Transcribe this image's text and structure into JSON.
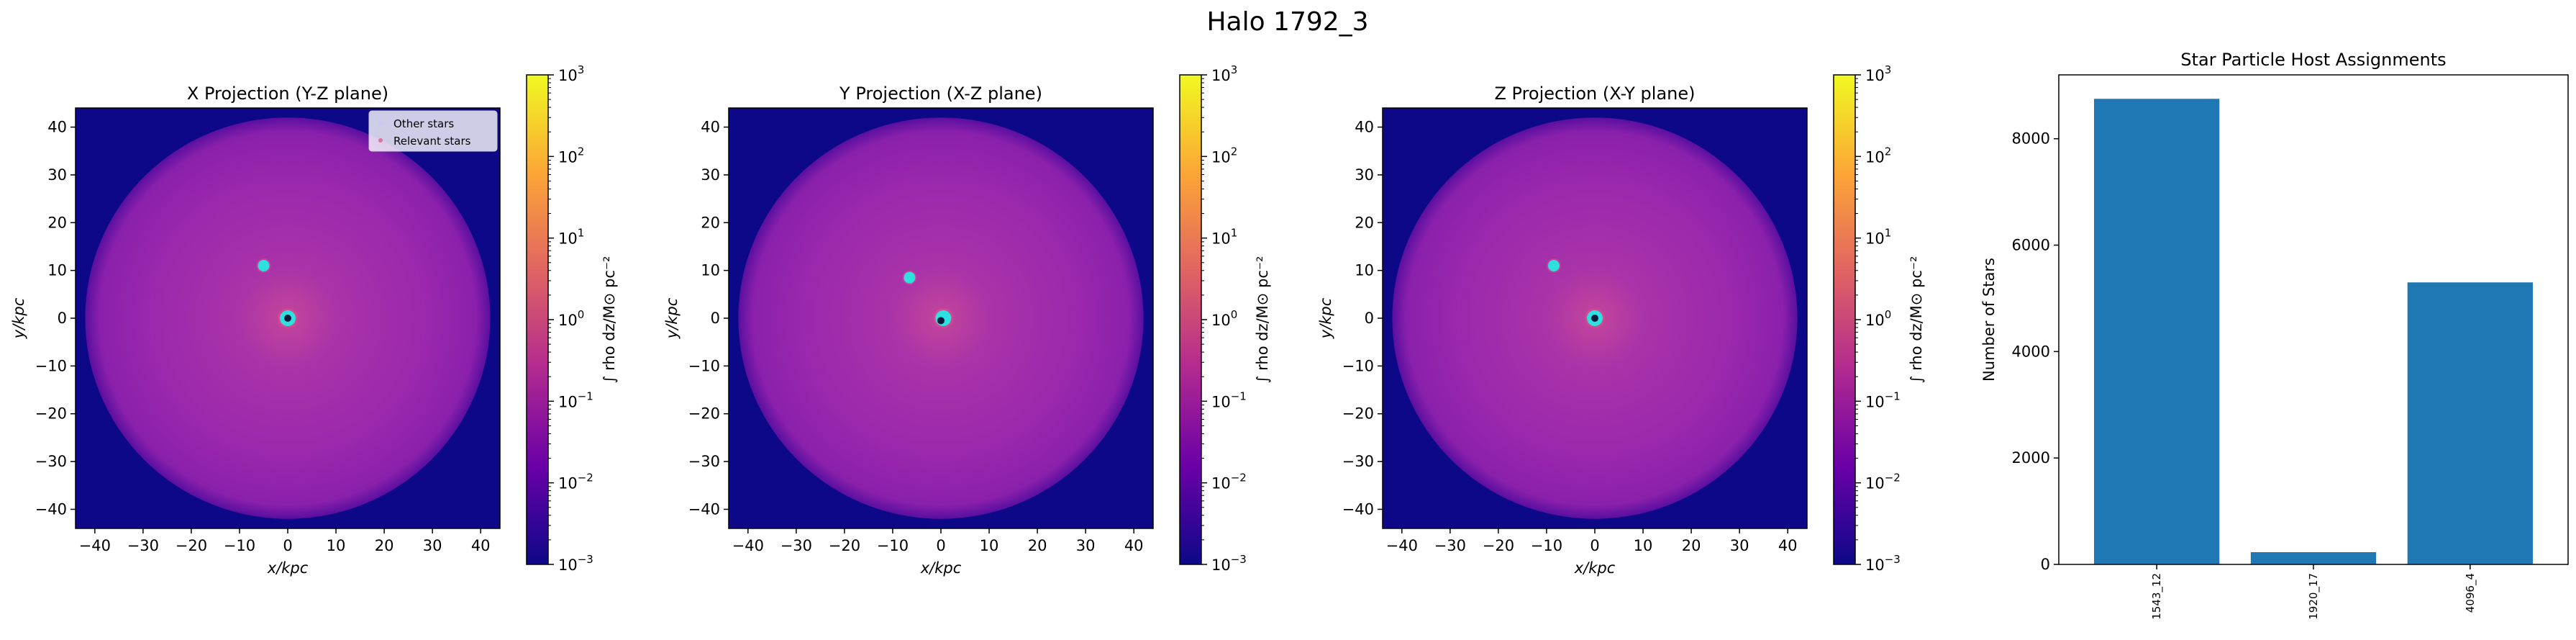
{
  "suptitle": "Halo 1792_3",
  "panels": [
    {
      "title": "X Projection (Y-Z plane)",
      "xlabel": "x/kpc",
      "ylabel": "y/kpc",
      "legend": {
        "items": [
          "Other stars",
          "Relevant stars"
        ],
        "position": "top-right"
      },
      "clumps": [
        {
          "x": -5,
          "y": 11
        },
        {
          "x": 0,
          "y": 0
        }
      ],
      "center_star": {
        "x": 0,
        "y": 0
      }
    },
    {
      "title": "Y Projection (X-Z plane)",
      "xlabel": "x/kpc",
      "ylabel": "y/kpc",
      "clumps": [
        {
          "x": -6.5,
          "y": 8.5
        },
        {
          "x": 0.5,
          "y": 0
        }
      ],
      "center_star": {
        "x": 0,
        "y": -0.5
      }
    },
    {
      "title": "Z Projection (X-Y plane)",
      "xlabel": "x/kpc",
      "ylabel": "y/kpc",
      "clumps": [
        {
          "x": -8.5,
          "y": 11
        },
        {
          "x": 0,
          "y": 0
        }
      ],
      "center_star": {
        "x": 0,
        "y": 0
      }
    }
  ],
  "colorbar": {
    "label": "∫ rho dz/M⊙ pc⁻²",
    "scale": "log",
    "range": [
      0.001,
      1000
    ],
    "tick_exponents": [
      "3",
      "2",
      "1",
      "0",
      "−1",
      "−2",
      "−3"
    ],
    "colors": [
      "#0d0887",
      "#6a00a8",
      "#b12a90",
      "#e16462",
      "#fca636",
      "#f0f921"
    ]
  },
  "projection_axes": {
    "xlim": [
      -44,
      44
    ],
    "ylim": [
      -44,
      44
    ],
    "ticks": [
      -40,
      -30,
      -20,
      -10,
      0,
      10,
      20,
      30,
      40
    ],
    "tick_labels": [
      "−40",
      "−30",
      "−20",
      "−10",
      "0",
      "10",
      "20",
      "30",
      "40"
    ]
  },
  "chart_data": {
    "type": "bar",
    "title": "Star Particle Host Assignments",
    "xlabel": "",
    "ylabel": "Number of Stars",
    "categories": [
      "1543_12",
      "1920_17",
      "4096_4"
    ],
    "values": [
      8750,
      230,
      5300
    ],
    "ylim": [
      0,
      9200
    ],
    "yticks": [
      0,
      2000,
      4000,
      6000,
      8000
    ],
    "bar_color": "#1f77b4"
  }
}
